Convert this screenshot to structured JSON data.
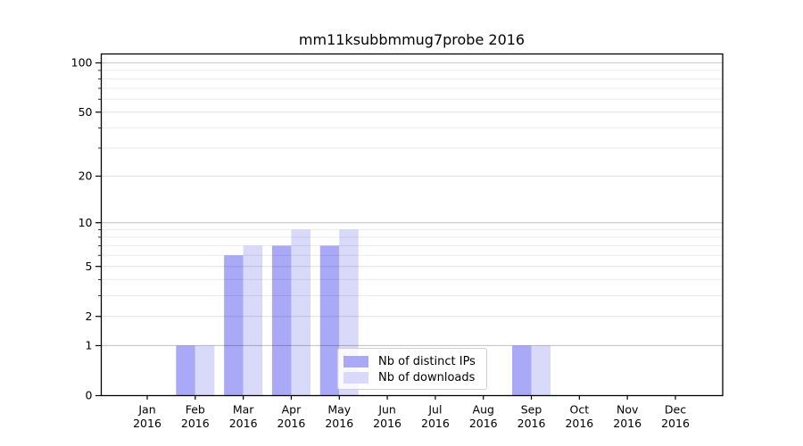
{
  "chart_data": {
    "type": "bar",
    "title": "mm11ksubbmmug7probe 2016",
    "categories": [
      {
        "month": "Jan",
        "year": "2016"
      },
      {
        "month": "Feb",
        "year": "2016"
      },
      {
        "month": "Mar",
        "year": "2016"
      },
      {
        "month": "Apr",
        "year": "2016"
      },
      {
        "month": "May",
        "year": "2016"
      },
      {
        "month": "Jun",
        "year": "2016"
      },
      {
        "month": "Jul",
        "year": "2016"
      },
      {
        "month": "Aug",
        "year": "2016"
      },
      {
        "month": "Sep",
        "year": "2016"
      },
      {
        "month": "Oct",
        "year": "2016"
      },
      {
        "month": "Nov",
        "year": "2016"
      },
      {
        "month": "Dec",
        "year": "2016"
      }
    ],
    "series": [
      {
        "name": "Nb of distinct IPs",
        "color": "#a9a9f7",
        "values": [
          0,
          1,
          6,
          7,
          7,
          0,
          0,
          0,
          1,
          0,
          0,
          0
        ]
      },
      {
        "name": "Nb of downloads",
        "color": "#d9d9fa",
        "values": [
          0,
          1,
          7,
          9,
          9,
          0,
          0,
          0,
          1,
          0,
          0,
          0
        ]
      }
    ],
    "yscale": "log1p",
    "ylim": [
      0,
      100
    ],
    "yticks": [
      0,
      1,
      2,
      5,
      10,
      20,
      50,
      100
    ],
    "yticks_decade": [
      1,
      10,
      100
    ],
    "yticks_sub": [
      2,
      5,
      20,
      50
    ],
    "yticks_minor": [
      3,
      4,
      6,
      7,
      8,
      9,
      30,
      40,
      60,
      70,
      80,
      90
    ],
    "grid": true,
    "legend_position": "lower center",
    "colors": {
      "background": "#ffffff",
      "bar_distinct_ips": "#a9a9f7",
      "bar_downloads": "#d9d9fa",
      "grid_minor": "rgba(0,0,0,0.08)",
      "grid_sub": "rgba(0,0,0,0.12)",
      "grid_decade": "rgba(0,0,0,0.22)",
      "axis": "#000000"
    }
  }
}
